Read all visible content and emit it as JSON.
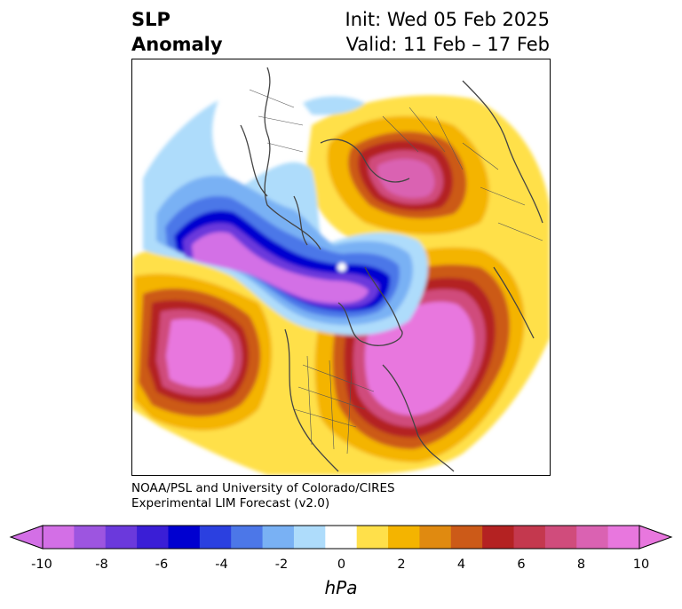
{
  "title": {
    "left_line1": "SLP",
    "left_line2": "Anomaly",
    "init": "Init: Wed 05 Feb 2025",
    "valid": "Valid: 11 Feb – 17 Feb"
  },
  "credit": {
    "line1": "NOAA/PSL and University of Colorado/CIRES",
    "line2": "Experimental LIM Forecast (v2.0)"
  },
  "colorbar": {
    "units": "hPa",
    "ticks": [
      "-10",
      "-8",
      "-6",
      "-4",
      "-2",
      "0",
      "2",
      "4",
      "6",
      "8",
      "10"
    ],
    "colors": [
      "#d36fe6",
      "#9d55e0",
      "#6b39dc",
      "#3a1ed6",
      "#0000d0",
      "#2b40e0",
      "#4c77e8",
      "#79b1f4",
      "#aedcfb",
      "#ffffff",
      "#ffe04a",
      "#f4b400",
      "#e08a10",
      "#cc5a18",
      "#b42222",
      "#c4384e",
      "#d04c7c",
      "#da62b2",
      "#e877de"
    ],
    "under_color": "#d36fe6",
    "over_color": "#e877de"
  },
  "map": {
    "projection": "north-polar-stereographic",
    "field": "SLP anomaly (hPa)",
    "features": [
      {
        "name": "Arctic / Siberia negative anomaly",
        "sign": "negative",
        "peak_hpa": -10
      },
      {
        "name": "North Pacific positive anomaly",
        "sign": "positive",
        "peak_hpa": 10
      },
      {
        "name": "Eastern North America / Atlantic positive anomaly",
        "sign": "positive",
        "peak_hpa": 10
      },
      {
        "name": "Europe positive anomaly",
        "sign": "positive",
        "peak_hpa": 8
      }
    ]
  }
}
